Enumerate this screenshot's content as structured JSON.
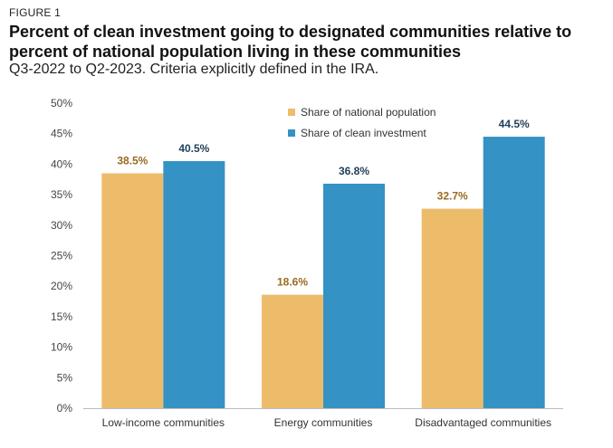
{
  "figure_label": "FIGURE 1",
  "title": "Percent of clean investment going to designated communities relative to percent of national population living in these communities",
  "subtitle": "Q3-2022 to Q2-2023. Criteria explicitly defined in the IRA.",
  "colors": {
    "population": "#EDBC6A",
    "investment": "#3592C4",
    "population_label": "#9A6A1E",
    "investment_label": "#1E3F5A"
  },
  "chart_data": {
    "type": "bar",
    "categories": [
      "Low-income communities",
      "Energy communities",
      "Disadvantaged communities"
    ],
    "series": [
      {
        "name": "Share of national population",
        "values": [
          38.5,
          18.6,
          32.7
        ],
        "labels": [
          "38.5%",
          "18.6%",
          "32.7%"
        ]
      },
      {
        "name": "Share of clean investment",
        "values": [
          40.5,
          36.8,
          44.5
        ],
        "labels": [
          "40.5%",
          "36.8%",
          "44.5%"
        ]
      }
    ],
    "ylim": [
      0,
      50
    ],
    "yticks": [
      0,
      5,
      10,
      15,
      20,
      25,
      30,
      35,
      40,
      45,
      50
    ],
    "ytick_labels": [
      "0%",
      "5%",
      "10%",
      "15%",
      "20%",
      "25%",
      "30%",
      "35%",
      "40%",
      "45%",
      "50%"
    ],
    "legend_position": "top-right",
    "xlabel": "",
    "ylabel": ""
  }
}
